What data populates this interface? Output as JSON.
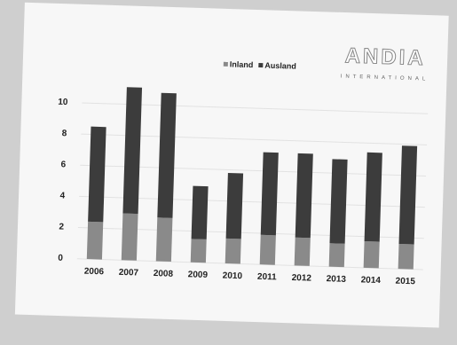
{
  "chart_data": {
    "type": "stacked-bar",
    "logo": "ANDIA",
    "logo_subtitle": "INTERNATIONAL",
    "categories": [
      "2006",
      "2007",
      "2008",
      "2009",
      "2010",
      "2011",
      "2012",
      "2013",
      "2014",
      "2015"
    ],
    "series": [
      {
        "name": "Inland",
        "color": "#8a8a8a",
        "values": [
          2.4,
          3.0,
          2.8,
          1.5,
          1.6,
          1.9,
          1.8,
          1.5,
          1.7,
          1.6
        ]
      },
      {
        "name": "Ausland",
        "color": "#3c3c3c",
        "values": [
          6.1,
          8.1,
          8.0,
          3.4,
          4.2,
          5.3,
          5.4,
          5.4,
          5.7,
          6.3
        ]
      }
    ],
    "ylim": [
      0,
      12
    ],
    "yticks": [
      0,
      2,
      4,
      6,
      8,
      10
    ],
    "grid": true,
    "legend": "top"
  }
}
